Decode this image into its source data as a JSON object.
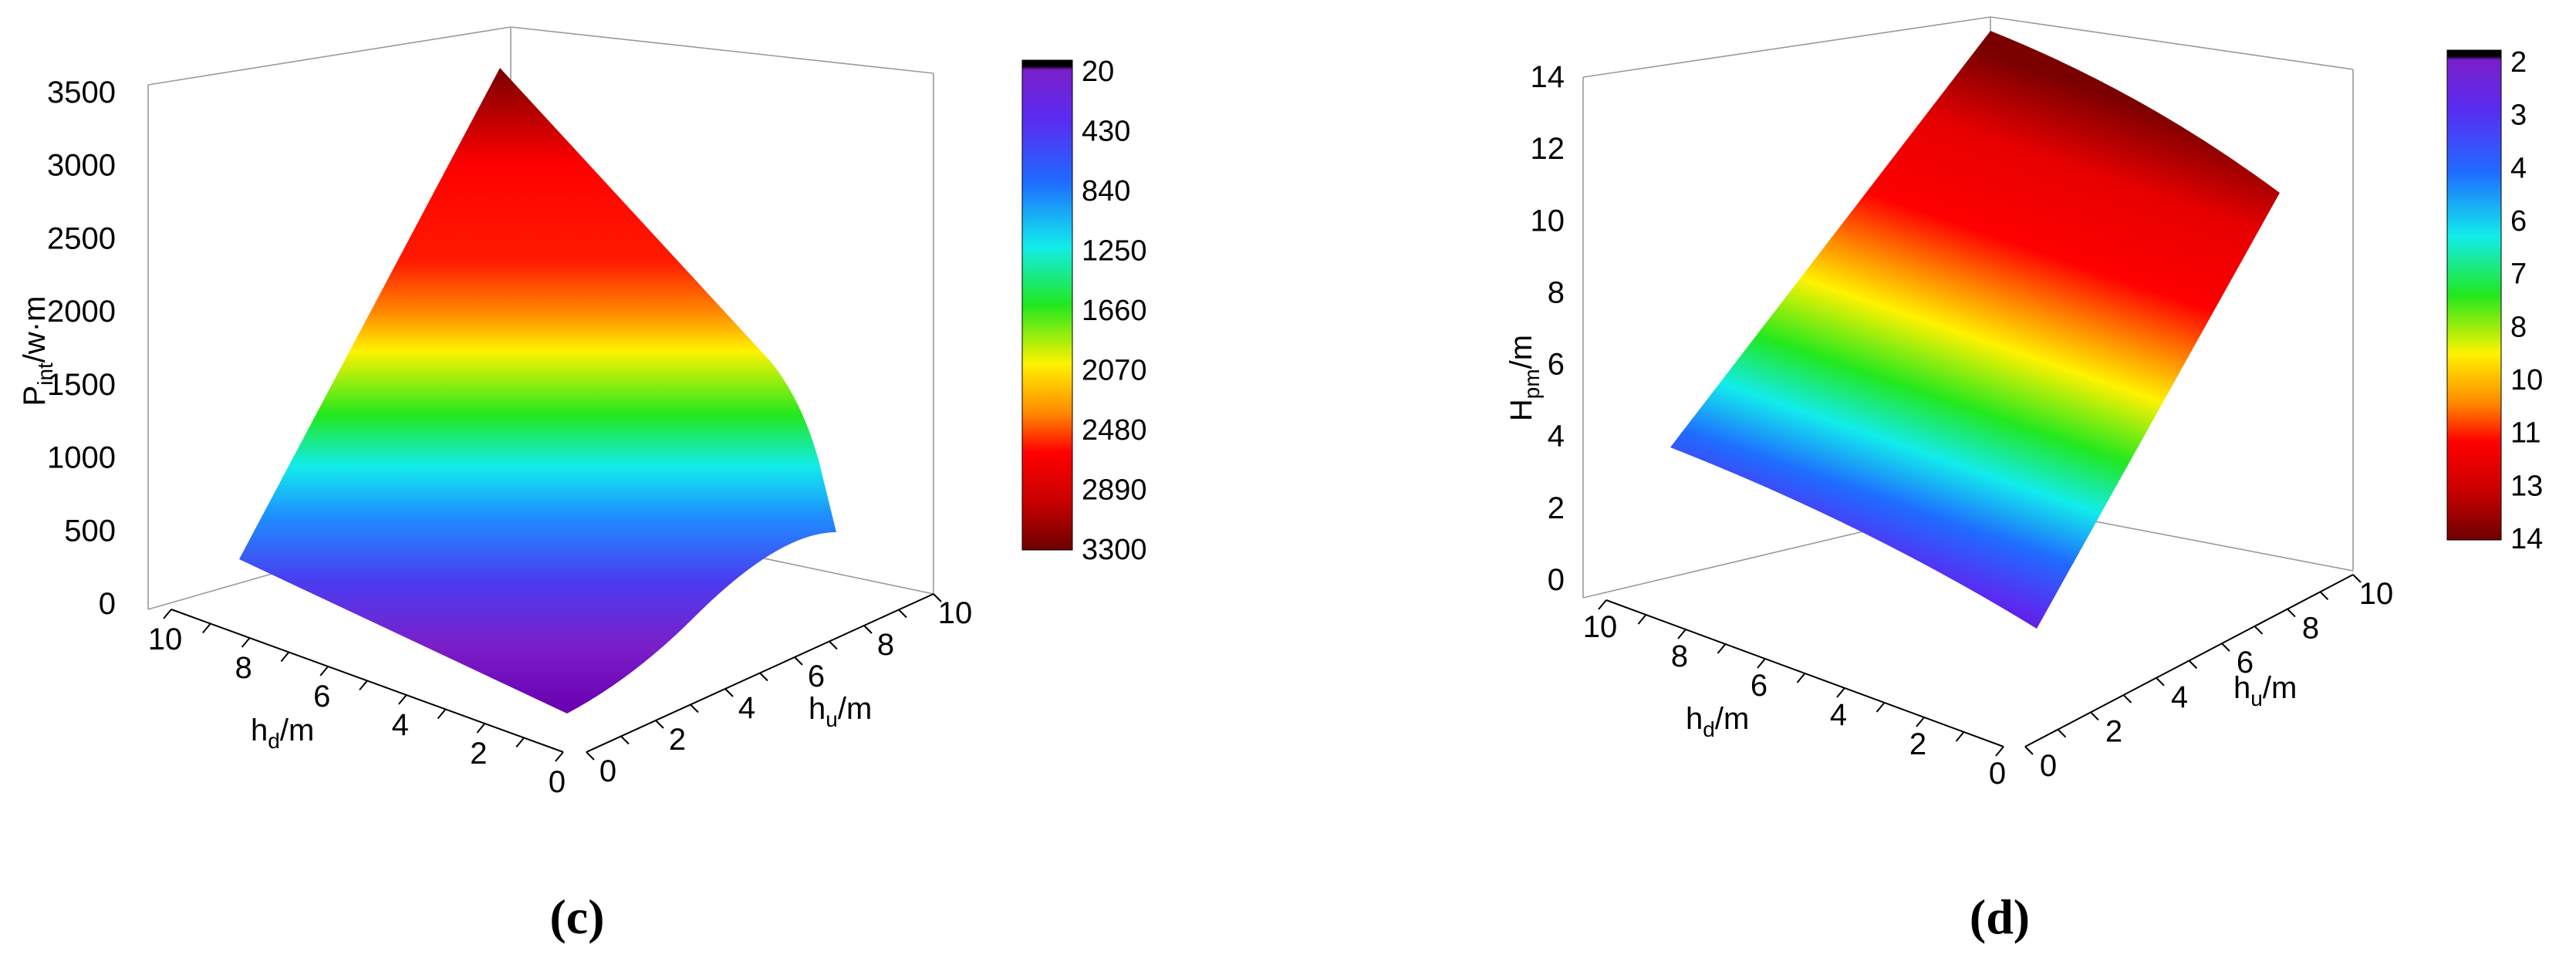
{
  "chart_data": [
    {
      "type": "surface3d",
      "panel_label": "(c)",
      "zlabel": {
        "main": "P",
        "sub": "int",
        "rest": "/w·m"
      },
      "xlabel": {
        "main": "h",
        "sub": "d",
        "rest": "/m"
      },
      "ylabel": {
        "main": "h",
        "sub": "u",
        "rest": "/m"
      },
      "xlim": [
        0,
        10
      ],
      "ylim": [
        0,
        10
      ],
      "zlim": [
        0,
        3500
      ],
      "x_ticks": [
        "0",
        "2",
        "4",
        "6",
        "8",
        "10"
      ],
      "y_ticks": [
        "0",
        "2",
        "4",
        "6",
        "8",
        "10"
      ],
      "z_ticks": [
        "0",
        "500",
        "1000",
        "1500",
        "2000",
        "2500",
        "3000",
        "3500"
      ],
      "colorbar": {
        "colormap": "rainbow (black–purple–blue–cyan–green–yellow–orange–red–dark red)",
        "labels": [
          "20",
          "430",
          "840",
          "1250",
          "1660",
          "2070",
          "2480",
          "2890",
          "3300"
        ]
      },
      "surface_corners": [
        {
          "h_d": 0,
          "h_u": 0,
          "value": 20
        },
        {
          "h_d": 10,
          "h_u": 0,
          "value": 500
        },
        {
          "h_d": 0,
          "h_u": 10,
          "value": 900
        },
        {
          "h_d": 10,
          "h_u": 10,
          "value": 3300
        }
      ]
    },
    {
      "type": "surface3d",
      "panel_label": "(d)",
      "zlabel": {
        "main": "H",
        "sub": "pm",
        "rest": "/m"
      },
      "xlabel": {
        "main": "h",
        "sub": "d",
        "rest": "/m"
      },
      "ylabel": {
        "main": "h",
        "sub": "u",
        "rest": "/m"
      },
      "xlim": [
        0,
        10
      ],
      "ylim": [
        0,
        10
      ],
      "zlim": [
        0,
        14
      ],
      "x_ticks": [
        "0",
        "2",
        "4",
        "6",
        "8",
        "10"
      ],
      "y_ticks": [
        "0",
        "2",
        "4",
        "6",
        "8",
        "10"
      ],
      "z_ticks": [
        "0",
        "2",
        "4",
        "6",
        "8",
        "10",
        "12",
        "14"
      ],
      "colorbar": {
        "colormap": "rainbow (black–purple–blue–cyan–green–yellow–orange–red–dark red)",
        "labels": [
          "2",
          "3",
          "4",
          "6",
          "7",
          "8",
          "10",
          "11",
          "13",
          "14"
        ]
      },
      "surface_corners": [
        {
          "h_d": 0,
          "h_u": 0,
          "value": 0.5
        },
        {
          "h_d": 10,
          "h_u": 0,
          "value": 3.5
        },
        {
          "h_d": 0,
          "h_u": 10,
          "value": 10.5
        },
        {
          "h_d": 10,
          "h_u": 10,
          "value": 14
        }
      ]
    }
  ]
}
